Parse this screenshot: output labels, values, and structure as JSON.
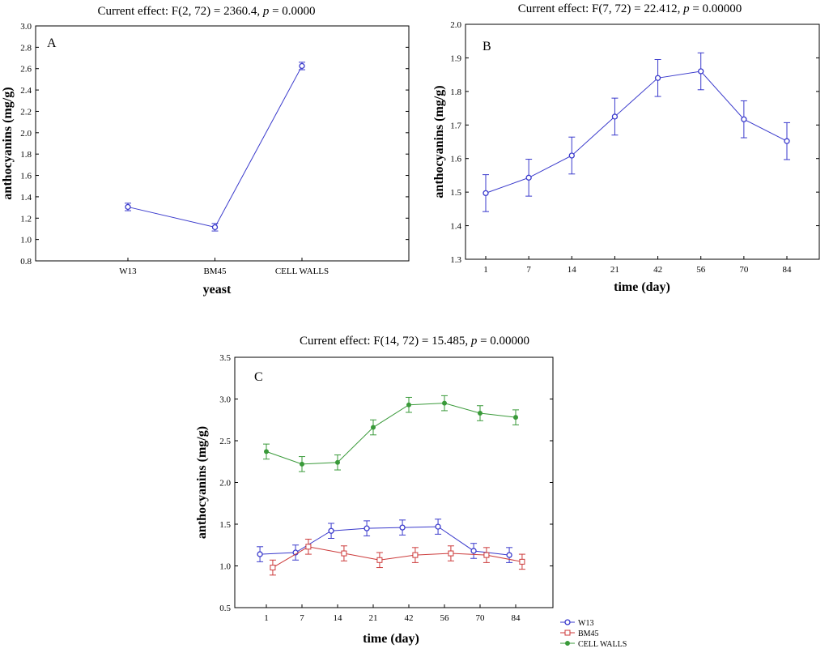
{
  "chart_data": [
    {
      "id": "A",
      "type": "line",
      "panel_label": "A",
      "title_prefix": "Current effect: F(2, 72) = 2360.4, ",
      "title_p": "p",
      "title_suffix": " = 0.0000",
      "xlabel": "yeast",
      "ylabel": "anthocyanins (mg/g)",
      "categories": [
        "W13",
        "BM45",
        "CELL WALLS"
      ],
      "ylim": [
        0.8,
        3.0
      ],
      "yticks": [
        0.8,
        1.0,
        1.2,
        1.4,
        1.6,
        1.8,
        2.0,
        2.2,
        2.4,
        2.6,
        2.8,
        3.0
      ],
      "series": [
        {
          "name": "anthocyanins",
          "color": "#3a3acc",
          "marker": "circle",
          "values": [
            1.305,
            1.115,
            2.625
          ],
          "err": [
            0.035,
            0.035,
            0.035
          ]
        }
      ]
    },
    {
      "id": "B",
      "type": "line",
      "panel_label": "B",
      "title_prefix": "Current effect: F(7, 72) = 22.412, ",
      "title_p": "p",
      "title_suffix": " = 0.00000",
      "xlabel": "time (day)",
      "ylabel": "anthocyanins (mg/g)",
      "categories": [
        "1",
        "7",
        "14",
        "21",
        "42",
        "56",
        "70",
        "84"
      ],
      "ylim": [
        1.3,
        2.0
      ],
      "yticks": [
        1.3,
        1.4,
        1.5,
        1.6,
        1.7,
        1.8,
        1.9,
        2.0
      ],
      "series": [
        {
          "name": "anthocyanins",
          "color": "#3a3acc",
          "marker": "circle",
          "values": [
            1.497,
            1.543,
            1.609,
            1.725,
            1.84,
            1.86,
            1.717,
            1.652
          ],
          "err": [
            0.055,
            0.055,
            0.055,
            0.055,
            0.055,
            0.055,
            0.055,
            0.055
          ]
        }
      ]
    },
    {
      "id": "C",
      "type": "line",
      "panel_label": "C",
      "title_prefix": "Current effect: F(14, 72) = 15.485, ",
      "title_p": "p",
      "title_suffix": " = 0.00000",
      "xlabel": "time (day)",
      "ylabel": "anthocyanins (mg/g)",
      "categories": [
        "1",
        "7",
        "14",
        "21",
        "42",
        "56",
        "70",
        "84"
      ],
      "ylim": [
        0.5,
        3.5
      ],
      "yticks": [
        0.5,
        1.0,
        1.5,
        2.0,
        2.5,
        3.0,
        3.5
      ],
      "legend_position": "bottom-right outside",
      "series": [
        {
          "name": "W13",
          "color": "#3a3acc",
          "marker": "circle",
          "offset": -0.18,
          "values": [
            1.14,
            1.16,
            1.42,
            1.45,
            1.46,
            1.47,
            1.18,
            1.13
          ],
          "err": [
            0.09,
            0.09,
            0.09,
            0.09,
            0.09,
            0.09,
            0.09,
            0.09
          ]
        },
        {
          "name": "BM45",
          "color": "#cc3a3a",
          "marker": "square",
          "offset": 0.18,
          "values": [
            0.98,
            1.23,
            1.15,
            1.07,
            1.13,
            1.15,
            1.13,
            1.05
          ],
          "err": [
            0.09,
            0.09,
            0.09,
            0.09,
            0.09,
            0.09,
            0.09,
            0.09
          ]
        },
        {
          "name": "CELL WALLS",
          "color": "#3a9a3a",
          "marker": "plus",
          "offset": 0,
          "values": [
            2.37,
            2.22,
            2.24,
            2.66,
            2.93,
            2.95,
            2.83,
            2.78
          ],
          "err": [
            0.09,
            0.09,
            0.09,
            0.09,
            0.09,
            0.09,
            0.09,
            0.09
          ]
        }
      ]
    }
  ]
}
